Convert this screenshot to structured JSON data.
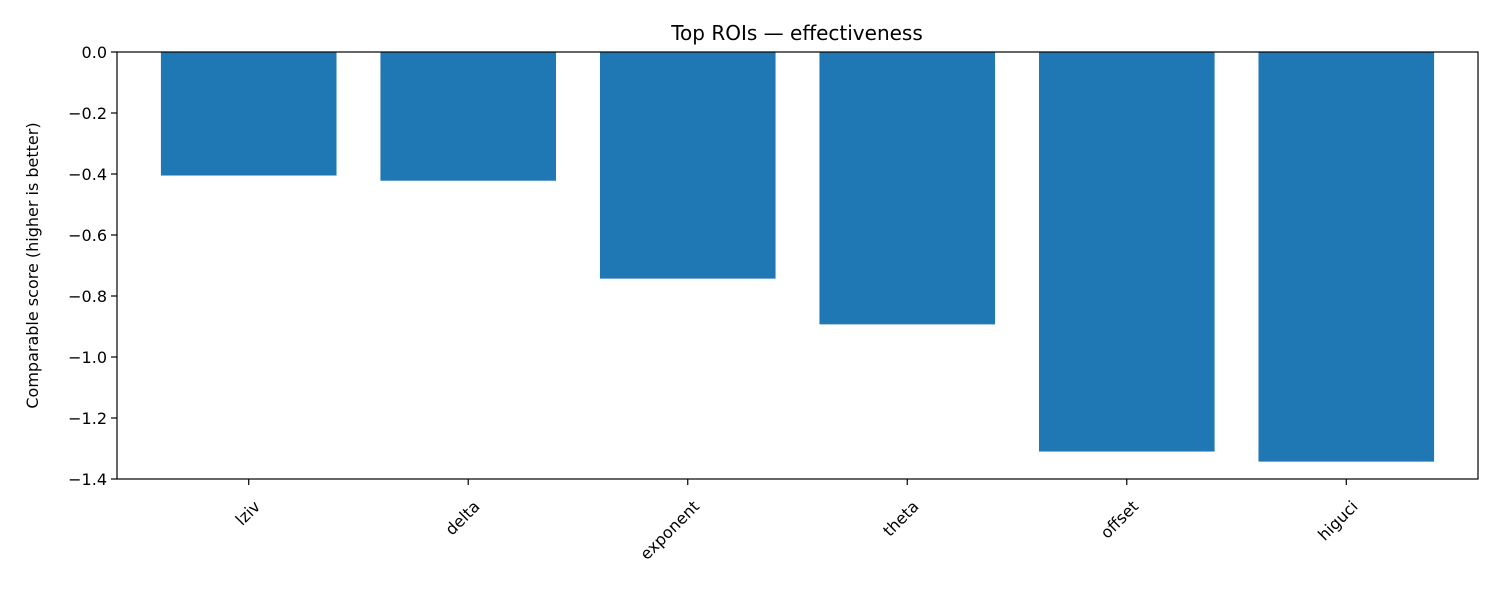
{
  "chart_data": {
    "type": "bar",
    "title": "Top ROIs — effectiveness",
    "xlabel": "",
    "ylabel": "Comparable score (higher is better)",
    "categories": [
      "lziv",
      "delta",
      "exponent",
      "theta",
      "offset",
      "higuci"
    ],
    "values": [
      -0.405,
      -0.422,
      -0.743,
      -0.893,
      -1.31,
      -1.343
    ],
    "ylim": [
      -1.4,
      0.0
    ],
    "yticks": [
      0.0,
      -0.2,
      -0.4,
      -0.6,
      -0.8,
      -1.0,
      -1.2,
      -1.4
    ],
    "ytick_labels": [
      "0.0",
      "−0.2",
      "−0.4",
      "−0.6",
      "−0.8",
      "−1.0",
      "−1.2",
      "−1.4"
    ],
    "bar_color": "#1f77b4",
    "grid": false,
    "legend": "none"
  }
}
